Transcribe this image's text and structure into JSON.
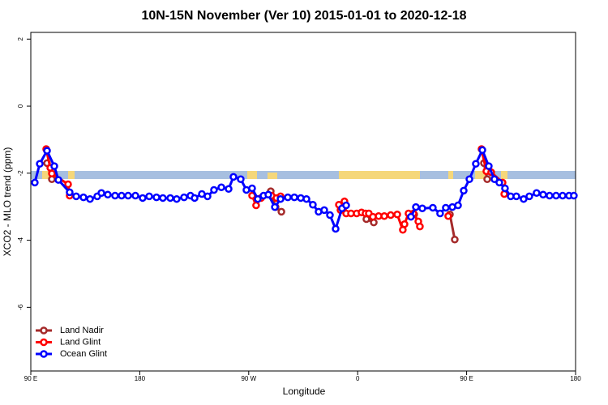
{
  "chart_data": {
    "type": "line",
    "title": "10N-15N November (Ver 10)   2015-01-01 to 2020-12-18",
    "xlabel": "Longitude",
    "ylabel": "XCO2 - MLO trend (ppm)",
    "xlim": [
      90,
      540
    ],
    "ylim": [
      -7.9,
      2.2
    ],
    "xticks": [
      {
        "value": 90,
        "label": "90 E"
      },
      180,
      {
        "value": 270,
        "label": "90 W"
      },
      {
        "value": 360,
        "label": "0"
      },
      {
        "value": 450,
        "label": "90 E"
      },
      {
        "value": 540,
        "label": "180"
      }
    ],
    "yticks": [
      -6,
      -4,
      -2,
      0,
      2
    ],
    "grid": false,
    "legend": "bottomleft",
    "series": [
      {
        "name": "Land Nadir",
        "color": "#a52a2a",
        "x": [
          103.4,
          107.4,
          null,
          288.2,
          292.2,
          297.0,
          null,
          367.2,
          373.3,
          null,
          406.7,
          null,
          436.2,
          440.2,
          null,
          464.3,
          467.0
        ],
        "values": [
          -1.7,
          -2.18,
          null,
          -2.54,
          -3.01,
          -3.15,
          null,
          -3.37,
          -3.47,
          null,
          -3.23,
          null,
          -3.23,
          -3.98,
          null,
          -1.7,
          -2.18
        ]
      },
      {
        "name": "Land Glint",
        "color": "#ff0000",
        "x": [
          102.7,
          106.1,
          107.4,
          120.8,
          122.1,
          null,
          272.8,
          276.1,
          280.2,
          288.9,
          292.9,
          296.3,
          null,
          344.5,
          345.8,
          349.1,
          350.5,
          354.5,
          359.2,
          363.2,
          366.5,
          369.2,
          372.6,
          377.3,
          382.0,
          387.3,
          392.7,
          397.3,
          398.7,
          402.0,
          406.1,
          410.1,
          411.4,
          null,
          434.8,
          null,
          462.3,
          466.3,
          470.3,
          479.7,
          481.1
        ],
        "values": [
          -1.28,
          -1.84,
          -2.01,
          -2.33,
          -2.67,
          null,
          -2.67,
          -2.96,
          -2.74,
          -2.67,
          -2.74,
          -2.69,
          null,
          -2.94,
          -3.1,
          -2.84,
          -3.2,
          -3.2,
          -3.2,
          -3.17,
          -3.2,
          -3.2,
          -3.3,
          -3.28,
          -3.28,
          -3.25,
          -3.23,
          -3.69,
          -3.52,
          -3.2,
          -3.2,
          -3.44,
          -3.59,
          null,
          -3.28,
          null,
          -1.28,
          -1.94,
          -1.97,
          -2.28,
          -2.62
        ]
      },
      {
        "name": "Ocean Glint",
        "color": "#0000ff",
        "x": [
          93.3,
          97.4,
          103.4,
          109.4,
          112.8,
          122.1,
          127.5,
          133.5,
          138.9,
          144.9,
          148.3,
          153.6,
          159.6,
          165.0,
          170.4,
          176.4,
          182.4,
          187.8,
          193.8,
          199.1,
          205.2,
          210.5,
          216.6,
          221.9,
          225.3,
          231.3,
          236.0,
          241.3,
          247.4,
          253.4,
          257.4,
          263.4,
          268.1,
          272.8,
          277.5,
          282.2,
          286.2,
          291.6,
          296.3,
          302.3,
          307.7,
          313.0,
          317.7,
          323.0,
          327.7,
          332.4,
          337.1,
          341.8,
          347.1,
          350.5,
          null,
          404.0,
          408.1,
          413.4,
          422.1,
          428.1,
          432.8,
          438.2,
          442.9,
          447.6,
          452.3,
          457.6,
          463.0,
          468.3,
          473.0,
          477.0,
          481.7,
          486.4,
          491.1,
          497.1,
          501.8,
          507.8,
          513.2,
          518.5,
          523.9,
          529.3,
          534.6,
          538.6
        ],
        "values": [
          -2.28,
          -1.72,
          -1.33,
          -1.79,
          -2.2,
          -2.57,
          -2.69,
          -2.72,
          -2.77,
          -2.69,
          -2.59,
          -2.64,
          -2.67,
          -2.67,
          -2.67,
          -2.67,
          -2.74,
          -2.69,
          -2.72,
          -2.74,
          -2.74,
          -2.77,
          -2.72,
          -2.67,
          -2.74,
          -2.62,
          -2.69,
          -2.5,
          -2.42,
          -2.47,
          -2.11,
          -2.18,
          -2.5,
          -2.45,
          -2.77,
          -2.67,
          -2.64,
          -3.01,
          -2.77,
          -2.72,
          -2.72,
          -2.74,
          -2.77,
          -2.94,
          -3.15,
          -3.1,
          -3.25,
          -3.66,
          -3.05,
          -2.96,
          null,
          -3.3,
          -3.01,
          -3.05,
          -3.03,
          -3.2,
          -3.03,
          -3.01,
          -2.96,
          -2.52,
          -2.18,
          -1.72,
          -1.31,
          -1.79,
          -2.18,
          -2.28,
          -2.45,
          -2.69,
          -2.69,
          -2.77,
          -2.69,
          -2.59,
          -2.64,
          -2.67,
          -2.67,
          -2.67,
          -2.67,
          -2.67
        ]
      }
    ]
  }
}
